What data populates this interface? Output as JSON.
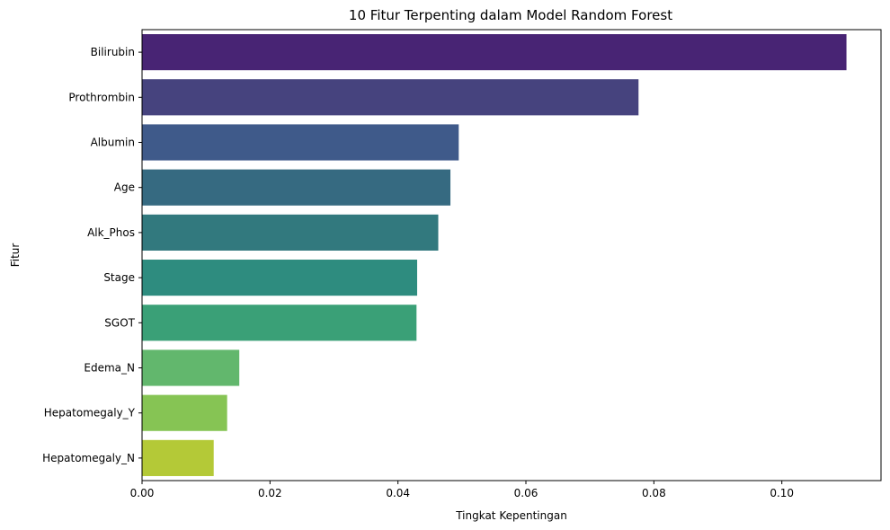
{
  "chart_data": {
    "type": "bar",
    "orientation": "horizontal",
    "title": "10 Fitur Terpenting dalam Model Random Forest",
    "xlabel": "Tingkat Kepentingan",
    "ylabel": "Fitur",
    "xlim": [
      0,
      0.1155
    ],
    "x_ticks": [
      0.0,
      0.02,
      0.04,
      0.06,
      0.08,
      0.1
    ],
    "x_tick_labels": [
      "0.00",
      "0.02",
      "0.04",
      "0.06",
      "0.08",
      "0.10"
    ],
    "categories": [
      "Bilirubin",
      "Prothrombin",
      "Albumin",
      "Age",
      "Alk_Phos",
      "Stage",
      "SGOT",
      "Edema_N",
      "Hepatomegaly_Y",
      "Hepatomegaly_N"
    ],
    "values": [
      0.1101,
      0.0776,
      0.0495,
      0.0482,
      0.0463,
      0.043,
      0.0429,
      0.0152,
      0.0133,
      0.0112
    ],
    "colors": [
      "#482474",
      "#46437e",
      "#3f5a8a",
      "#366a81",
      "#32797e",
      "#2e8c7f",
      "#3aa077",
      "#62b76d",
      "#86c454",
      "#b4c937"
    ],
    "grid": false,
    "legend": "none"
  }
}
